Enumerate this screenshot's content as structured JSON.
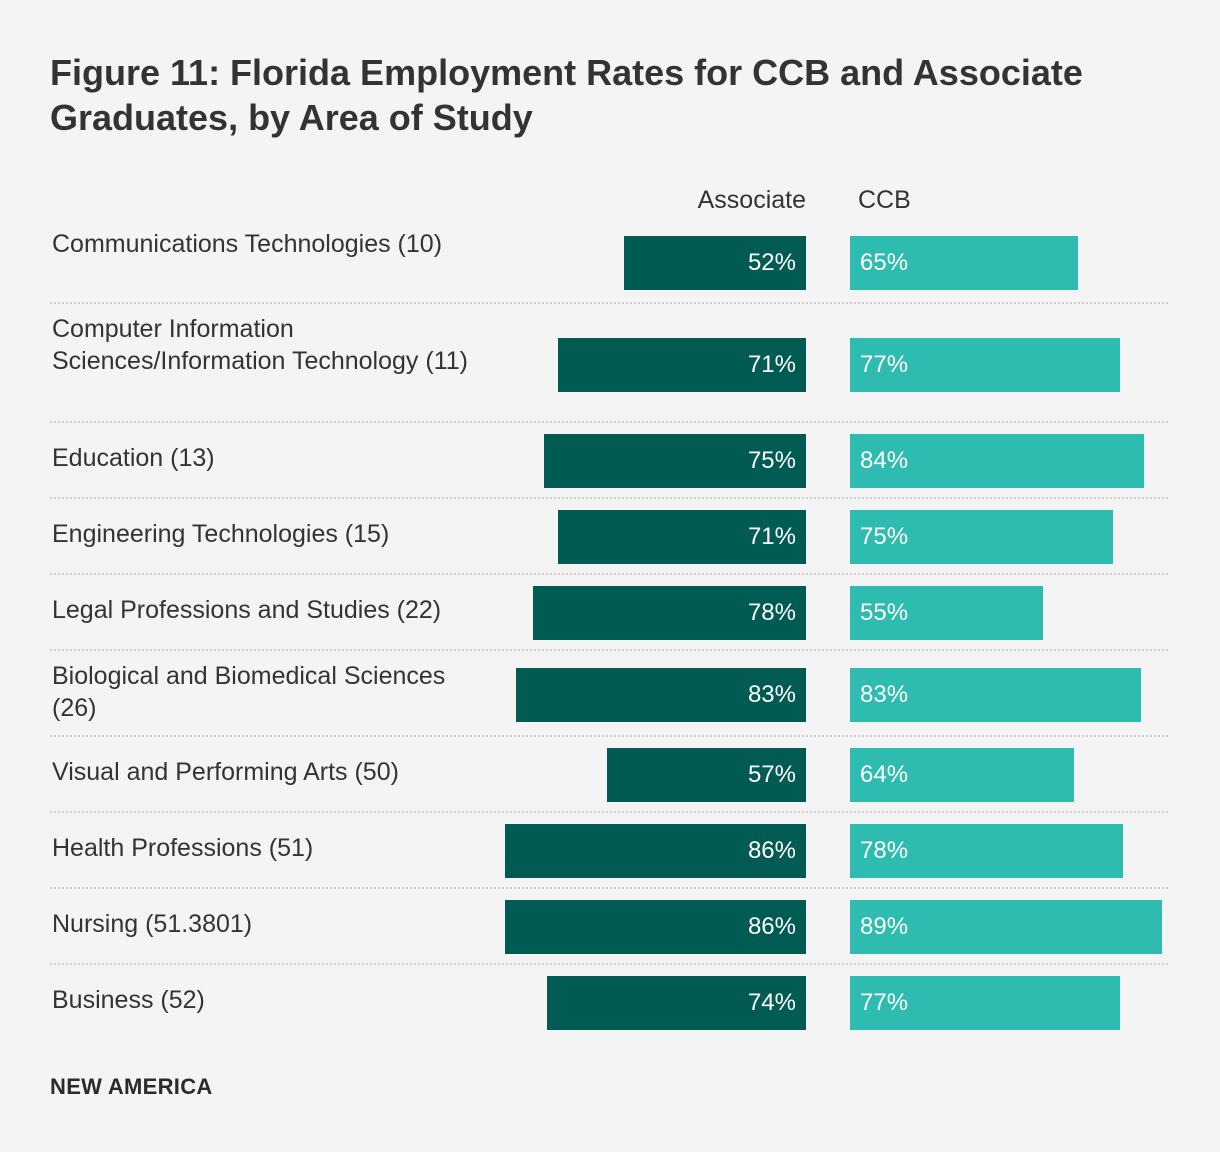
{
  "chart_data": {
    "type": "bar",
    "title": "Figure 11: Florida Employment Rates for CCB and Associate Graduates, by Area of Study",
    "categories": [
      "Communications Technologies (10)",
      "Computer Information Sciences/Information Technology (11)",
      "Education (13)",
      "Engineering Technologies (15)",
      "Legal Professions and Studies (22)",
      "Biological and Biomedical Sciences (26)",
      "Visual and Performing Arts (50)",
      "Health Professions (51)",
      "Nursing (51.3801)",
      "Business (52)"
    ],
    "series": [
      {
        "name": "Associate",
        "values": [
          52,
          71,
          75,
          71,
          78,
          83,
          57,
          86,
          86,
          74
        ],
        "color": "#005c52"
      },
      {
        "name": "CCB",
        "values": [
          65,
          77,
          84,
          75,
          55,
          83,
          64,
          78,
          89,
          77
        ],
        "color": "#2ebcb1"
      }
    ],
    "value_format": "%",
    "layout": "back-to-back horizontal bars",
    "legend": "column headers above bars"
  },
  "footer": "NEW AMERICA"
}
